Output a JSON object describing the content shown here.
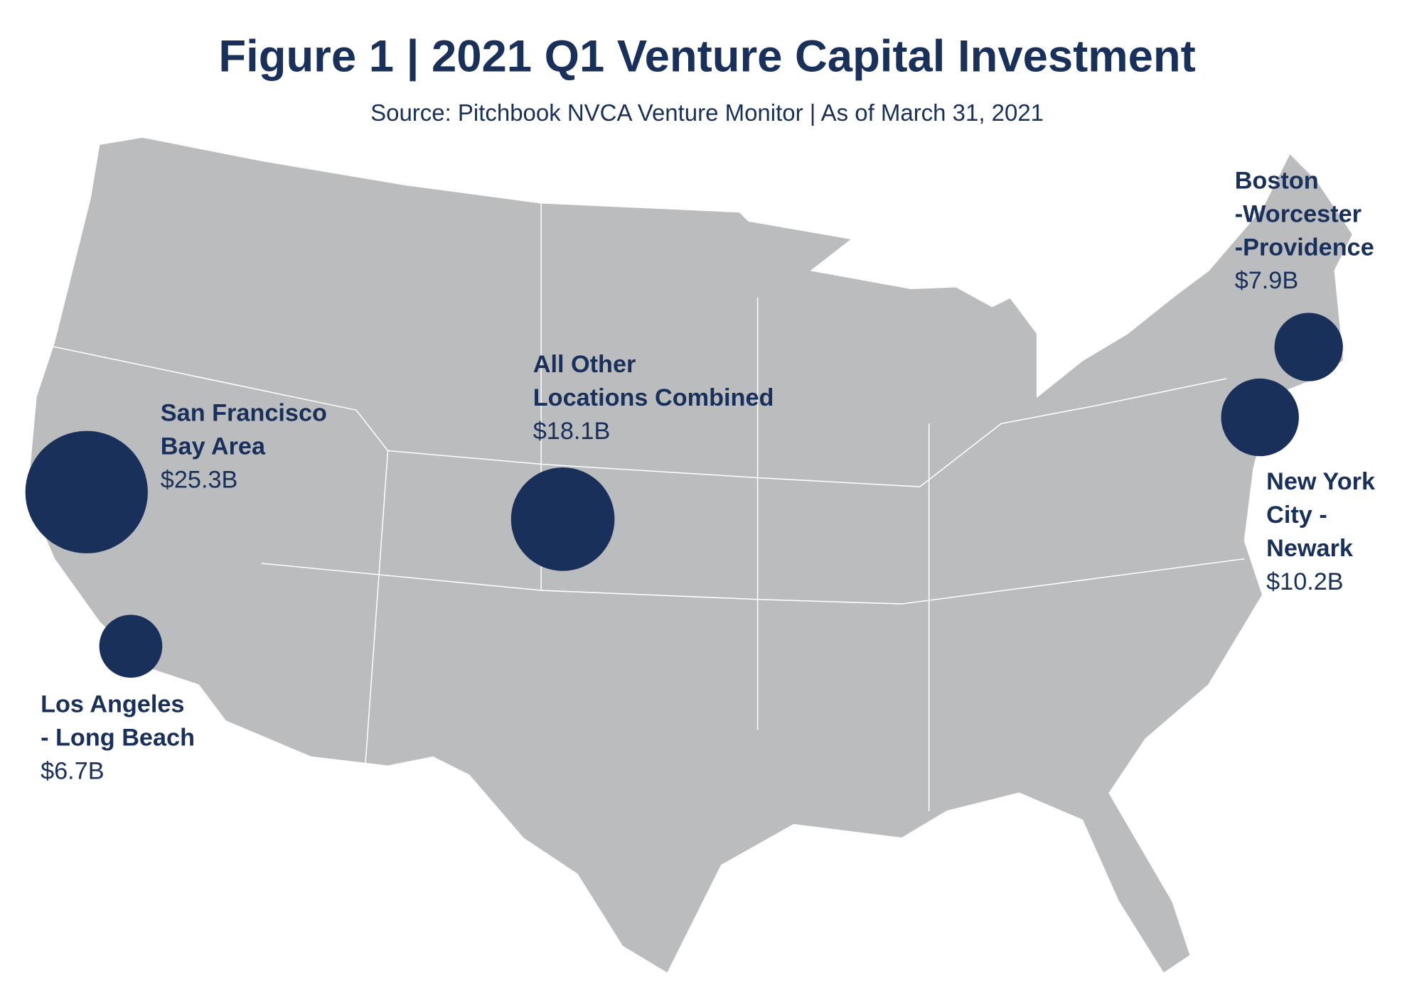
{
  "chart_data": {
    "type": "bubble_map",
    "title": "Figure 1 | 2021 Q1 Venture Capital Investment",
    "subtitle": "Source: Pitchbook NVCA Venture Monitor | As of March 31, 2021",
    "color": "#18305a",
    "map_color": "#bbbcbe",
    "points": [
      {
        "label_lines": [
          "San Francisco",
          "Bay Area"
        ],
        "value": 25.3,
        "value_label": "$25.3B"
      },
      {
        "label_lines": [
          "Los Angeles",
          "- Long Beach"
        ],
        "value": 6.7,
        "value_label": "$6.7B"
      },
      {
        "label_lines": [
          "All Other",
          "Locations Combined"
        ],
        "value": 18.1,
        "value_label": "$18.1B"
      },
      {
        "label_lines": [
          "New York",
          "City -",
          "Newark"
        ],
        "value": 10.2,
        "value_label": "$10.2B"
      },
      {
        "label_lines": [
          "Boston",
          "-Worcester",
          "-Providence"
        ],
        "value": 7.9,
        "value_label": "$7.9B"
      }
    ]
  }
}
